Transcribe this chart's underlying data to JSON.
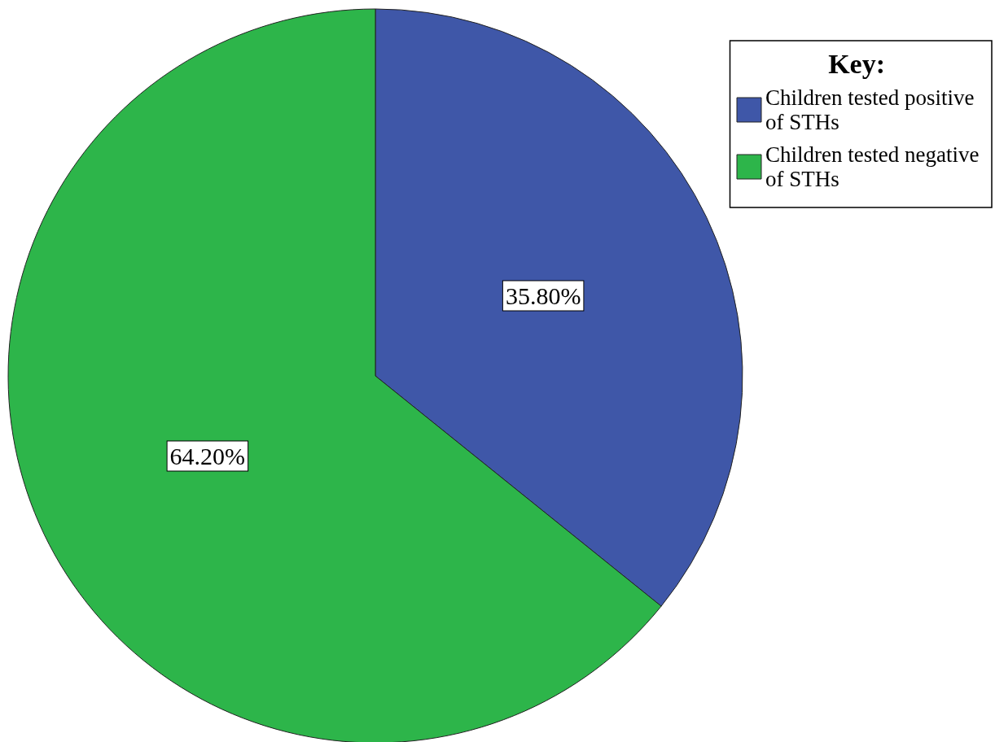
{
  "chart_data": {
    "type": "pie",
    "legend_title": "Key:",
    "legend": "top right",
    "categories": [
      "Children tested positive of STHs",
      "Children tested negative of STHs"
    ],
    "values": [
      35.8,
      64.2
    ],
    "colors": [
      "#3f57a8",
      "#2db54a"
    ],
    "value_labels": [
      "35.80%",
      "64.20%"
    ]
  }
}
